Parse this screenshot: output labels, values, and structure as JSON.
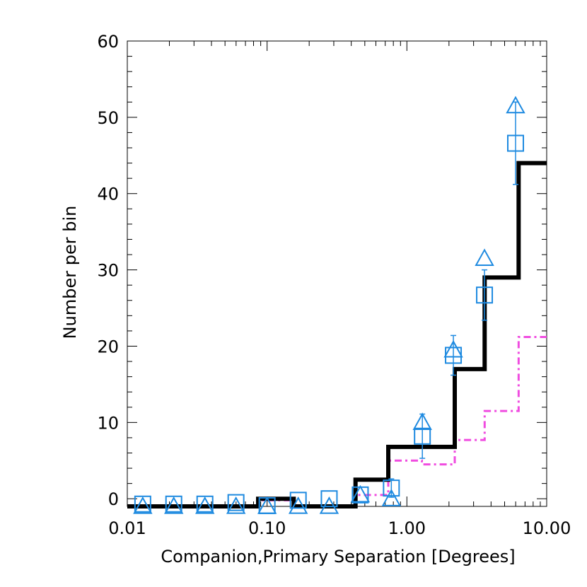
{
  "chart_data": {
    "type": "histogram",
    "x_scale": "log",
    "xlim": [
      0.01,
      10.0
    ],
    "ylim": [
      -1,
      60
    ],
    "xlabel": "Companion,Primary Separation [Degrees]",
    "ylabel": "Number per bin",
    "x_tick_labels": [
      "0.01",
      "0.10",
      "1.00",
      "10.00"
    ],
    "x_tick_values": [
      0.01,
      0.1,
      1.0,
      10.0
    ],
    "y_tick_labels": [
      "0",
      "10",
      "20",
      "30",
      "40",
      "50",
      "60"
    ],
    "y_tick_values": [
      0,
      10,
      20,
      30,
      40,
      50,
      60
    ],
    "bin_edges": [
      0.01,
      0.0167,
      0.0278,
      0.0464,
      0.0774,
      0.129,
      0.215,
      0.359,
      0.599,
      1.0,
      1.67,
      2.78,
      4.64,
      7.74,
      10.0
    ],
    "colors": {
      "black": "#000000",
      "magenta": "#f04ce0",
      "blue": "#1e8ae0"
    },
    "series": [
      {
        "style": "solid-black-step",
        "x_edges": [
          0.01,
          0.0167,
          0.0278,
          0.0464,
          0.0774,
          0.0863,
          0.155,
          0.429,
          0.736,
          2.2,
          3.6,
          6.3,
          10.0
        ],
        "values": [
          -1,
          -1,
          -1,
          -1,
          -1,
          0,
          -1,
          2.5,
          6.8,
          17,
          29,
          44
        ]
      },
      {
        "style": "dash-dot-magenta-step",
        "x_edges": [
          0.01,
          0.0167,
          0.0278,
          0.0464,
          0.0774,
          0.0863,
          0.155,
          0.429,
          0.736,
          1.28,
          2.2,
          3.6,
          6.3,
          10.0
        ],
        "values": [
          -1,
          -1,
          -1,
          -1,
          -1,
          -0.2,
          -1,
          0.5,
          5,
          4.5,
          7.7,
          11.5,
          21.2
        ]
      },
      {
        "style": "blue-squares-errorbars",
        "x": [
          0.0129,
          0.0215,
          0.0359,
          0.0599,
          0.1,
          0.167,
          0.278,
          0.464,
          0.774,
          1.29,
          2.15,
          3.59,
          5.99
        ],
        "values": [
          -0.7,
          -0.7,
          -0.7,
          -0.5,
          -0.9,
          -0.2,
          0,
          0.5,
          1.4,
          8.2,
          18.8,
          26.7,
          46.6
        ],
        "err": [
          0,
          0,
          0,
          0,
          0,
          0,
          0,
          0,
          1.2,
          2.9,
          2.6,
          3.3,
          5.4
        ]
      },
      {
        "style": "blue-triangles",
        "x": [
          0.0129,
          0.0215,
          0.0359,
          0.0599,
          0.1,
          0.167,
          0.278,
          0.464,
          0.774,
          1.29,
          2.15,
          3.59,
          5.99
        ],
        "values": [
          -1,
          -1,
          -1,
          -1,
          -1,
          -1,
          -1,
          0.5,
          0,
          10,
          19.5,
          31.5,
          51.5
        ]
      }
    ]
  }
}
